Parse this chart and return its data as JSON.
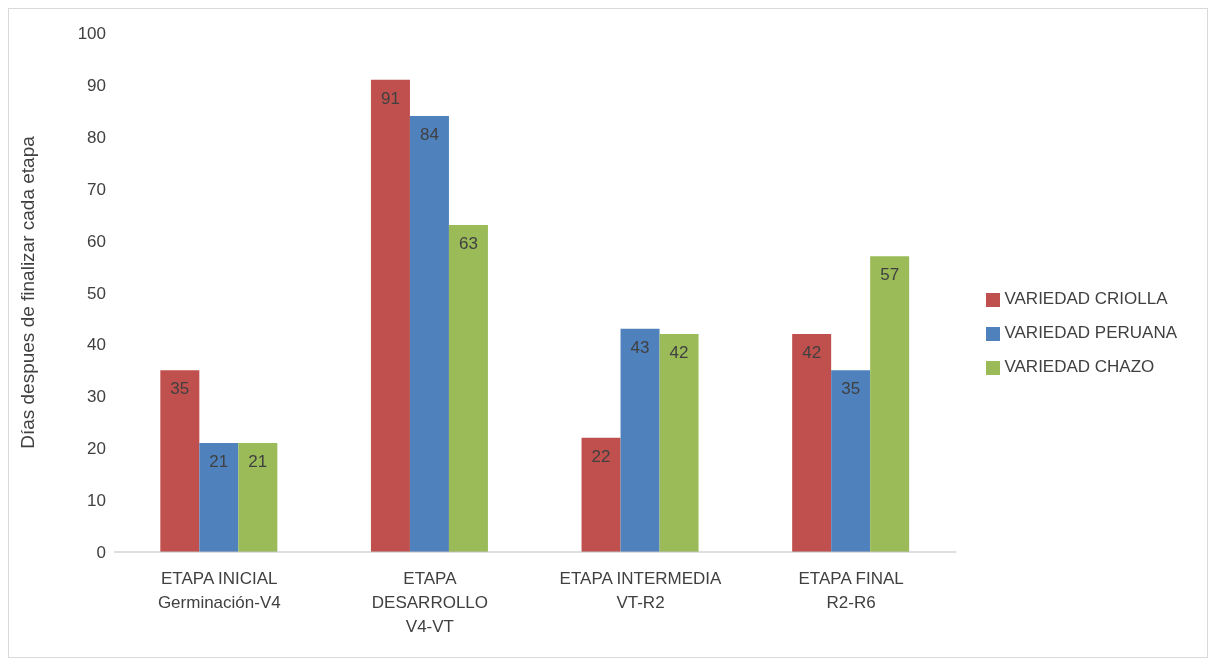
{
  "chart_data": {
    "type": "bar",
    "categories": [
      "ETAPA INICIAL\nGerminación-V4",
      "ETAPA\nDESARROLLO\nV4-VT",
      "ETAPA INTERMEDIA\nVT-R2",
      "ETAPA FINAL\nR2-R6"
    ],
    "ylabel": "Días despues de finalizar cada etapa",
    "ylim": [
      0,
      100
    ],
    "yticks": [
      0,
      10,
      20,
      30,
      40,
      50,
      60,
      70,
      80,
      90,
      100
    ],
    "legend": "right",
    "data_labels": true,
    "series": [
      {
        "name": "VARIEDAD CRIOLLA",
        "color": "#c0504d",
        "values": [
          35,
          91,
          22,
          42
        ]
      },
      {
        "name": "VARIEDAD PERUANA",
        "color": "#4f81bd",
        "values": [
          21,
          84,
          43,
          35
        ]
      },
      {
        "name": "VARIEDAD CHAZO",
        "color": "#9bbb59",
        "values": [
          21,
          63,
          42,
          57
        ]
      }
    ]
  }
}
